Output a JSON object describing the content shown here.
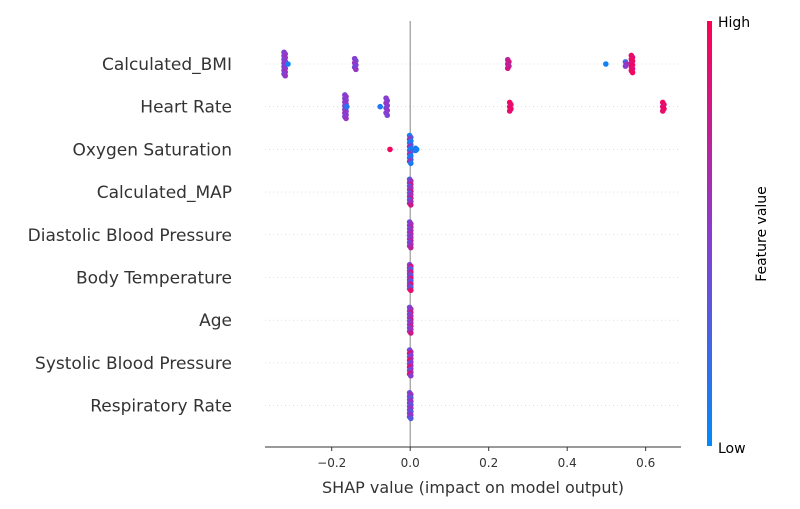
{
  "chart_data": {
    "type": "scatter",
    "title": "",
    "xlabel": "SHAP value (impact on model output)",
    "ylabel": "",
    "xlim": [
      -0.37,
      0.69
    ],
    "xticks": [
      {
        "value": -0.2,
        "label": "−0.2"
      },
      {
        "value": 0.0,
        "label": "0.0"
      },
      {
        "value": 0.2,
        "label": "0.2"
      },
      {
        "value": 0.4,
        "label": "0.4"
      },
      {
        "value": 0.6,
        "label": "0.6"
      }
    ],
    "grid": false,
    "zero_line": 0.0,
    "colorbar": {
      "title": "Feature value",
      "high_label": "High",
      "low_label": "Low",
      "low_color": "#008bfb",
      "high_color": "#ff0052"
    },
    "features": [
      {
        "name": "Calculated_BMI",
        "clusters": [
          {
            "x": -0.32,
            "count": 14,
            "spread": 0.55,
            "colors": [
              0.45,
              0.55,
              0.5,
              0.6
            ]
          },
          {
            "x": -0.31,
            "count": 1,
            "spread": 0.0,
            "colors": [
              0.05
            ]
          },
          {
            "x": -0.14,
            "count": 6,
            "spread": 0.25,
            "colors": [
              0.5,
              0.4,
              0.55
            ]
          },
          {
            "x": 0.25,
            "count": 5,
            "spread": 0.2,
            "colors": [
              0.7,
              0.8,
              0.75
            ]
          },
          {
            "x": 0.5,
            "count": 1,
            "spread": 0.0,
            "colors": [
              0.05
            ]
          },
          {
            "x": 0.55,
            "count": 3,
            "spread": 0.1,
            "colors": [
              0.2,
              0.6,
              0.5
            ]
          },
          {
            "x": 0.565,
            "count": 10,
            "spread": 0.4,
            "colors": [
              0.95,
              0.85,
              0.9
            ]
          }
        ]
      },
      {
        "name": "Heart Rate",
        "clusters": [
          {
            "x": -0.165,
            "count": 14,
            "spread": 0.55,
            "colors": [
              0.45,
              0.55,
              0.5
            ]
          },
          {
            "x": -0.16,
            "count": 1,
            "spread": 0.0,
            "colors": [
              0.15
            ]
          },
          {
            "x": -0.075,
            "count": 1,
            "spread": 0.0,
            "colors": [
              0.1
            ]
          },
          {
            "x": -0.06,
            "count": 8,
            "spread": 0.4,
            "colors": [
              0.5,
              0.45,
              0.55
            ]
          },
          {
            "x": 0.255,
            "count": 5,
            "spread": 0.2,
            "colors": [
              0.95,
              0.9,
              0.85
            ]
          },
          {
            "x": 0.645,
            "count": 5,
            "spread": 0.2,
            "colors": [
              0.95,
              0.9,
              0.85
            ]
          }
        ]
      },
      {
        "name": "Oxygen Saturation",
        "clusters": [
          {
            "x": -0.05,
            "count": 1,
            "spread": 0.0,
            "colors": [
              0.95
            ]
          },
          {
            "x": 0.0,
            "count": 16,
            "spread": 0.65,
            "colors": [
              0.05,
              0.3,
              0.6,
              0.1
            ]
          },
          {
            "x": 0.015,
            "count": 3,
            "spread": 0.05,
            "colors": [
              0.1,
              0.05
            ]
          }
        ]
      },
      {
        "name": "Calculated_MAP",
        "clusters": [
          {
            "x": 0.0,
            "count": 16,
            "spread": 0.6,
            "colors": [
              0.3,
              0.6,
              0.5,
              0.8
            ]
          }
        ]
      },
      {
        "name": "Diastolic Blood Pressure",
        "clusters": [
          {
            "x": 0.0,
            "count": 16,
            "spread": 0.6,
            "colors": [
              0.4,
              0.6,
              0.5,
              0.7
            ]
          }
        ]
      },
      {
        "name": "Body Temperature",
        "clusters": [
          {
            "x": 0.0,
            "count": 18,
            "spread": 0.6,
            "colors": [
              0.4,
              0.9,
              0.6,
              0.3
            ]
          }
        ]
      },
      {
        "name": "Age",
        "clusters": [
          {
            "x": 0.0,
            "count": 16,
            "spread": 0.6,
            "colors": [
              0.4,
              0.6,
              0.5,
              0.8
            ]
          }
        ]
      },
      {
        "name": "Systolic Blood Pressure",
        "clusters": [
          {
            "x": 0.0,
            "count": 16,
            "spread": 0.6,
            "colors": [
              0.4,
              0.6,
              0.9,
              0.5
            ]
          }
        ]
      },
      {
        "name": "Respiratory Rate",
        "clusters": [
          {
            "x": 0.0,
            "count": 16,
            "spread": 0.6,
            "colors": [
              0.4,
              0.6,
              0.5,
              0.3
            ]
          }
        ]
      }
    ]
  }
}
